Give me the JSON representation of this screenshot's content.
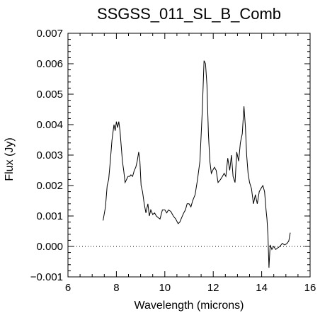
{
  "chart_data": {
    "type": "line",
    "title": "SSGSS_011_SL_B_Comb",
    "xlabel": "Wavelength (microns)",
    "ylabel": "Flux (Jy)",
    "xlim": [
      6,
      16
    ],
    "ylim": [
      -0.001,
      0.007
    ],
    "xticks": [
      6,
      8,
      10,
      12,
      14,
      16
    ],
    "yticks": [
      -0.001,
      0.0,
      0.001,
      0.002,
      0.003,
      0.004,
      0.005,
      0.006,
      0.007
    ],
    "xtick_labels": [
      "6",
      "8",
      "10",
      "12",
      "14",
      "16"
    ],
    "ytick_labels": [
      "−0.001",
      "0.000",
      "0.001",
      "0.002",
      "0.003",
      "0.004",
      "0.005",
      "0.006",
      "0.007"
    ],
    "grid": false,
    "reference_line": {
      "y": 0.0,
      "style": "dotted"
    },
    "series": [
      {
        "color": "#000000",
        "x": [
          7.45,
          7.55,
          7.62,
          7.68,
          7.75,
          7.82,
          7.9,
          7.95,
          8.0,
          8.05,
          8.1,
          8.15,
          8.2,
          8.25,
          8.3,
          8.36,
          8.42,
          8.48,
          8.55,
          8.6,
          8.67,
          8.74,
          8.8,
          8.86,
          8.92,
          8.97,
          9.02,
          9.08,
          9.15,
          9.22,
          9.3,
          9.36,
          9.42,
          9.5,
          9.58,
          9.65,
          9.72,
          9.8,
          9.9,
          10.0,
          10.08,
          10.15,
          10.25,
          10.35,
          10.45,
          10.55,
          10.62,
          10.7,
          10.78,
          10.85,
          10.92,
          11.0,
          11.08,
          11.15,
          11.25,
          11.35,
          11.45,
          11.55,
          11.62,
          11.68,
          11.74,
          11.8,
          11.86,
          11.92,
          11.98,
          12.05,
          12.12,
          12.2,
          12.3,
          12.38,
          12.45,
          12.52,
          12.6,
          12.68,
          12.75,
          12.82,
          12.9,
          12.97,
          13.05,
          13.12,
          13.2,
          13.27,
          13.33,
          13.38,
          13.44,
          13.5,
          13.58,
          13.66,
          13.74,
          13.82,
          13.9,
          13.97,
          14.05,
          14.12,
          14.18,
          14.22,
          14.26,
          14.3,
          14.35,
          14.42,
          14.5,
          14.58,
          14.66,
          14.75,
          14.85,
          14.95,
          15.05,
          15.12,
          15.18
        ],
        "y": [
          0.00085,
          0.0013,
          0.002,
          0.0022,
          0.0028,
          0.0035,
          0.004,
          0.0038,
          0.0041,
          0.0039,
          0.0041,
          0.0038,
          0.0033,
          0.0028,
          0.0025,
          0.0021,
          0.0022,
          0.0023,
          0.0023,
          0.00235,
          0.0023,
          0.0025,
          0.0026,
          0.0028,
          0.0031,
          0.0028,
          0.002,
          0.0018,
          0.0014,
          0.0011,
          0.0014,
          0.001,
          0.0012,
          0.00105,
          0.0011,
          0.001,
          0.00095,
          0.0009,
          0.0012,
          0.0012,
          0.0011,
          0.0012,
          0.00115,
          0.001,
          0.0009,
          0.00075,
          0.0008,
          0.00095,
          0.0011,
          0.0012,
          0.0014,
          0.0014,
          0.0013,
          0.0015,
          0.0017,
          0.0022,
          0.0028,
          0.0045,
          0.0061,
          0.006,
          0.0053,
          0.0037,
          0.0028,
          0.0024,
          0.0025,
          0.0026,
          0.0025,
          0.0021,
          0.0022,
          0.0023,
          0.0024,
          0.0023,
          0.0029,
          0.0025,
          0.003,
          0.0023,
          0.0021,
          0.0031,
          0.0028,
          0.0034,
          0.0037,
          0.0046,
          0.0039,
          0.003,
          0.0024,
          0.0021,
          0.0019,
          0.0014,
          0.0017,
          0.0014,
          0.0018,
          0.0019,
          0.002,
          0.0018,
          0.0012,
          0.0009,
          0.00035,
          -0.0007,
          5e-05,
          -0.0001,
          0.0,
          -0.0001,
          -5e-05,
          0.0,
          0.0001,
          5e-05,
          0.0001,
          0.00018,
          0.00045
        ]
      }
    ]
  }
}
